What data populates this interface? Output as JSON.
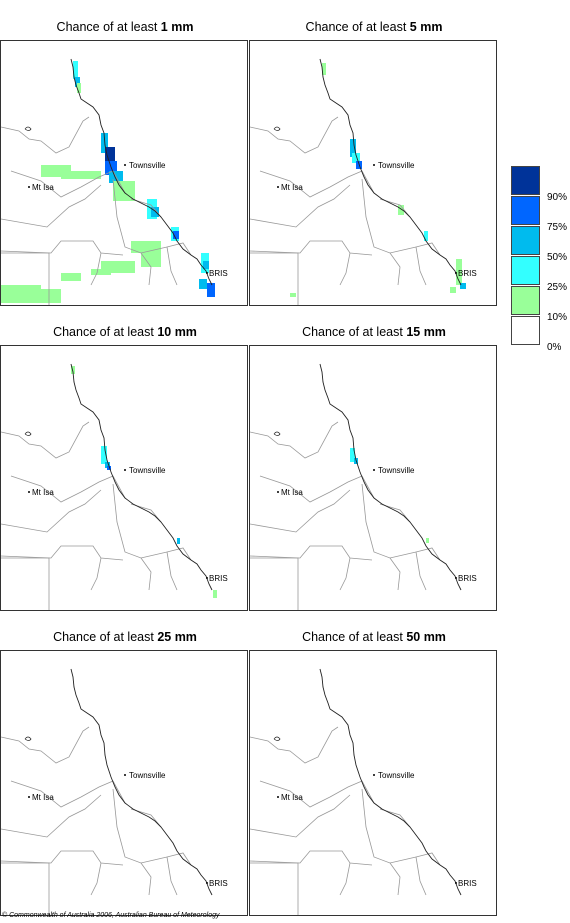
{
  "panels": [
    {
      "prefix": "Chance of at least ",
      "amount": "1 mm",
      "level": 0
    },
    {
      "prefix": "Chance of at least ",
      "amount": "5 mm",
      "level": 1
    },
    {
      "prefix": "Chance of at least ",
      "amount": "10 mm",
      "level": 2
    },
    {
      "prefix": "Chance of at least ",
      "amount": "15 mm",
      "level": 3
    },
    {
      "prefix": "Chance of at least ",
      "amount": "25 mm",
      "level": 4
    },
    {
      "prefix": "Chance of at least ",
      "amount": "50 mm",
      "level": 5
    }
  ],
  "places": {
    "townsville": "Townsville",
    "mt_isa": "Mt Isa",
    "brisbane": "BRIS"
  },
  "legend": {
    "labels": [
      "90%",
      "75%",
      "50%",
      "25%",
      "10%",
      "0%"
    ],
    "colors": [
      "#003399",
      "#0066ff",
      "#00bbee",
      "#33ffff",
      "#99ff99",
      "#ffffff"
    ]
  },
  "colors": {
    "line": "#999999",
    "coast": "#222222"
  },
  "copyright": "© Commonwealth of Australia 2006, Australian Bureau of Meteorology"
}
